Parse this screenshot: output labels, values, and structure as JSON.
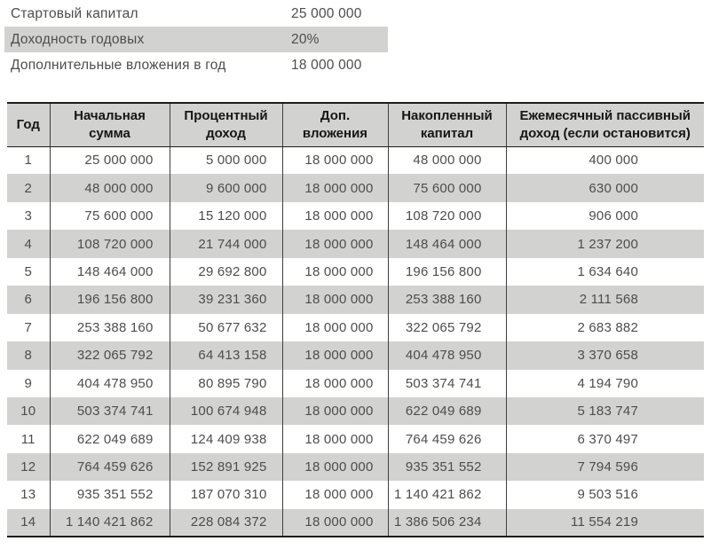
{
  "colors": {
    "band": "#d2d2d0",
    "border-dark": "#1c1c1c",
    "grid": "#3f3f3f",
    "body-text": "#4d4d4d",
    "header-text": "#161616"
  },
  "params": {
    "rows": [
      {
        "label": "Стартовый капитал",
        "value": "25 000 000"
      },
      {
        "label": "Доходность годовых",
        "value": "20%"
      },
      {
        "label": "Дополнительные вложения в год",
        "value": "18 000 000"
      }
    ]
  },
  "table": {
    "headers": [
      "Год",
      "Начальная сумма",
      "Процентный доход",
      "Доп. вложения",
      "Накопленный капитал",
      "Ежемесячный пассивный доход (если остановится)"
    ],
    "rows": [
      [
        "1",
        "25 000 000",
        "5 000 000",
        "18 000 000",
        "48 000 000",
        "400 000"
      ],
      [
        "2",
        "48 000 000",
        "9 600 000",
        "18 000 000",
        "75 600 000",
        "630 000"
      ],
      [
        "3",
        "75 600 000",
        "15 120 000",
        "18 000 000",
        "108 720 000",
        "906 000"
      ],
      [
        "4",
        "108 720 000",
        "21 744 000",
        "18 000 000",
        "148 464 000",
        "1 237 200"
      ],
      [
        "5",
        "148 464 000",
        "29 692 800",
        "18 000 000",
        "196 156 800",
        "1 634 640"
      ],
      [
        "6",
        "196 156 800",
        "39 231 360",
        "18 000 000",
        "253 388 160",
        "2 111 568"
      ],
      [
        "7",
        "253 388 160",
        "50 677 632",
        "18 000 000",
        "322 065 792",
        "2 683 882"
      ],
      [
        "8",
        "322 065 792",
        "64 413 158",
        "18 000 000",
        "404 478 950",
        "3 370 658"
      ],
      [
        "9",
        "404 478 950",
        "80 895 790",
        "18 000 000",
        "503 374 741",
        "4 194 790"
      ],
      [
        "10",
        "503 374 741",
        "100 674 948",
        "18 000 000",
        "622 049 689",
        "5 183 747"
      ],
      [
        "11",
        "622 049 689",
        "124 409 938",
        "18 000 000",
        "764 459 626",
        "6 370 497"
      ],
      [
        "12",
        "764 459 626",
        "152 891 925",
        "18 000 000",
        "935 351 552",
        "7 794 596"
      ],
      [
        "13",
        "935 351 552",
        "187 070 310",
        "18 000 000",
        "1 140 421 862",
        "9 503 516"
      ],
      [
        "14",
        "1 140 421 862",
        "228 084 372",
        "18 000 000",
        "1 386 506 234",
        "11 554 219"
      ]
    ]
  }
}
